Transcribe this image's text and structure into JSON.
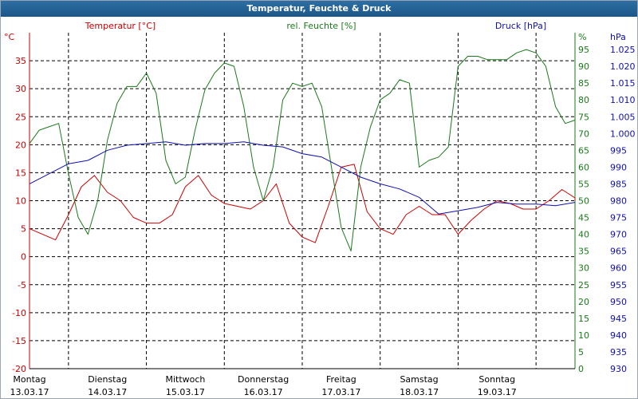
{
  "window": {
    "title": "Temperatur, Feuchte & Druck"
  },
  "colors": {
    "temp": "#cc0000",
    "humidity": "#1a7a1a",
    "pressure": "#1010b0",
    "grid": "#000000",
    "background": "#ffffff"
  },
  "chart_data": {
    "type": "line",
    "title": "Temperatur, Feuchte & Druck",
    "grid": true,
    "x": {
      "start": "2017-03-13T00:00",
      "end": "2017-03-20T00:00",
      "tick_days": [
        "Montag",
        "Dienstag",
        "Mittwoch",
        "Donnerstag",
        "Freitag",
        "Samstag",
        "Sonntag"
      ],
      "tick_dates": [
        "13.03.17",
        "14.03.17",
        "15.03.17",
        "16.03.17",
        "17.03.17",
        "18.03.17",
        "19.03.17"
      ]
    },
    "axes": {
      "temperature": {
        "label": "Temperatur [°C]",
        "unit": "°C",
        "min": -20,
        "max": 40,
        "ticks": [
          -20,
          -15,
          -10,
          -5,
          0,
          5,
          10,
          15,
          20,
          25,
          30,
          35
        ]
      },
      "humidity": {
        "label": "rel. Feuchte [%]",
        "unit": "%",
        "min": 0,
        "max": 100,
        "ticks": [
          0,
          5,
          10,
          15,
          20,
          25,
          30,
          35,
          40,
          45,
          50,
          55,
          60,
          65,
          70,
          75,
          80,
          85,
          90,
          95
        ]
      },
      "pressure": {
        "label": "Druck [hPa]",
        "unit": "hPa",
        "min": 930,
        "max": 1030,
        "ticks": [
          "930",
          "935",
          "940",
          "945",
          "950",
          "955",
          "960",
          "965",
          "970",
          "975",
          "980",
          "985",
          "990",
          "995",
          "1.000",
          "1.005",
          "1.010",
          "1.015",
          "1.020",
          "1.025"
        ]
      }
    },
    "series": [
      {
        "name": "Temperatur [°C]",
        "axis": "temperature",
        "points": [
          [
            "2017-03-13T00:00",
            5.0
          ],
          [
            "2017-03-13T04:00",
            4.0
          ],
          [
            "2017-03-13T08:00",
            3.0
          ],
          [
            "2017-03-13T12:00",
            7.5
          ],
          [
            "2017-03-13T16:00",
            12.5
          ],
          [
            "2017-03-13T20:00",
            14.5
          ],
          [
            "2017-03-14T00:00",
            11.5
          ],
          [
            "2017-03-14T04:00",
            10.0
          ],
          [
            "2017-03-14T08:00",
            7.0
          ],
          [
            "2017-03-14T12:00",
            6.0
          ],
          [
            "2017-03-14T16:00",
            6.0
          ],
          [
            "2017-03-14T20:00",
            7.5
          ],
          [
            "2017-03-15T00:00",
            12.5
          ],
          [
            "2017-03-15T04:00",
            14.5
          ],
          [
            "2017-03-15T08:00",
            11.0
          ],
          [
            "2017-03-15T12:00",
            9.5
          ],
          [
            "2017-03-15T16:00",
            9.0
          ],
          [
            "2017-03-15T20:00",
            8.5
          ],
          [
            "2017-03-16T00:00",
            10.0
          ],
          [
            "2017-03-16T04:00",
            13.0
          ],
          [
            "2017-03-16T08:00",
            6.0
          ],
          [
            "2017-03-16T12:00",
            3.5
          ],
          [
            "2017-03-16T16:00",
            2.5
          ],
          [
            "2017-03-16T20:00",
            9.0
          ],
          [
            "2017-03-17T00:00",
            16.0
          ],
          [
            "2017-03-17T04:00",
            16.5
          ],
          [
            "2017-03-17T08:00",
            8.0
          ],
          [
            "2017-03-17T12:00",
            5.0
          ],
          [
            "2017-03-17T16:00",
            4.0
          ],
          [
            "2017-03-17T20:00",
            7.5
          ],
          [
            "2017-03-18T00:00",
            9.0
          ],
          [
            "2017-03-18T04:00",
            7.5
          ],
          [
            "2017-03-18T08:00",
            7.5
          ],
          [
            "2017-03-18T12:00",
            4.0
          ],
          [
            "2017-03-18T16:00",
            6.5
          ],
          [
            "2017-03-18T20:00",
            8.5
          ],
          [
            "2017-03-19T00:00",
            10.0
          ],
          [
            "2017-03-19T04:00",
            9.5
          ],
          [
            "2017-03-19T08:00",
            8.5
          ],
          [
            "2017-03-19T12:00",
            8.5
          ],
          [
            "2017-03-19T16:00",
            10.0
          ],
          [
            "2017-03-19T20:00",
            12.0
          ],
          [
            "2017-03-20T00:00",
            10.5
          ],
          [
            "2017-03-20T04:00",
            10.0
          ]
        ]
      },
      {
        "name": "rel. Feuchte [%]",
        "axis": "humidity",
        "points": [
          [
            "2017-03-13T00:00",
            67
          ],
          [
            "2017-03-13T03:00",
            71
          ],
          [
            "2017-03-13T06:00",
            72
          ],
          [
            "2017-03-13T09:00",
            73
          ],
          [
            "2017-03-13T12:00",
            58
          ],
          [
            "2017-03-13T15:00",
            45
          ],
          [
            "2017-03-13T18:00",
            40
          ],
          [
            "2017-03-13T21:00",
            50
          ],
          [
            "2017-03-14T00:00",
            68
          ],
          [
            "2017-03-14T03:00",
            79
          ],
          [
            "2017-03-14T06:00",
            84
          ],
          [
            "2017-03-14T09:00",
            84
          ],
          [
            "2017-03-14T12:00",
            88
          ],
          [
            "2017-03-14T15:00",
            82
          ],
          [
            "2017-03-14T18:00",
            62
          ],
          [
            "2017-03-14T21:00",
            55
          ],
          [
            "2017-03-15T00:00",
            57
          ],
          [
            "2017-03-15T03:00",
            71
          ],
          [
            "2017-03-15T06:00",
            83
          ],
          [
            "2017-03-15T09:00",
            88
          ],
          [
            "2017-03-15T12:00",
            91
          ],
          [
            "2017-03-15T15:00",
            90
          ],
          [
            "2017-03-15T18:00",
            78
          ],
          [
            "2017-03-15T21:00",
            60
          ],
          [
            "2017-03-16T00:00",
            50
          ],
          [
            "2017-03-16T03:00",
            60
          ],
          [
            "2017-03-16T06:00",
            80
          ],
          [
            "2017-03-16T09:00",
            85
          ],
          [
            "2017-03-16T12:00",
            84
          ],
          [
            "2017-03-16T15:00",
            85
          ],
          [
            "2017-03-16T18:00",
            78
          ],
          [
            "2017-03-16T21:00",
            60
          ],
          [
            "2017-03-17T00:00",
            42
          ],
          [
            "2017-03-17T03:00",
            35
          ],
          [
            "2017-03-17T06:00",
            60
          ],
          [
            "2017-03-17T09:00",
            72
          ],
          [
            "2017-03-17T12:00",
            80
          ],
          [
            "2017-03-17T15:00",
            82
          ],
          [
            "2017-03-17T18:00",
            86
          ],
          [
            "2017-03-17T21:00",
            85
          ],
          [
            "2017-03-18T00:00",
            60
          ],
          [
            "2017-03-18T03:00",
            62
          ],
          [
            "2017-03-18T06:00",
            63
          ],
          [
            "2017-03-18T09:00",
            66
          ],
          [
            "2017-03-18T12:00",
            90
          ],
          [
            "2017-03-18T15:00",
            93
          ],
          [
            "2017-03-18T18:00",
            93
          ],
          [
            "2017-03-18T21:00",
            92
          ],
          [
            "2017-03-19T00:00",
            92
          ],
          [
            "2017-03-19T03:00",
            92
          ],
          [
            "2017-03-19T06:00",
            94
          ],
          [
            "2017-03-19T09:00",
            95
          ],
          [
            "2017-03-19T12:00",
            94
          ],
          [
            "2017-03-19T15:00",
            90
          ],
          [
            "2017-03-19T18:00",
            78
          ],
          [
            "2017-03-19T21:00",
            73
          ],
          [
            "2017-03-20T00:00",
            74
          ],
          [
            "2017-03-20T02:00",
            83
          ]
        ]
      },
      {
        "name": "Druck [hPa]",
        "axis": "pressure",
        "points": [
          [
            "2017-03-13T00:00",
            985
          ],
          [
            "2017-03-13T06:00",
            988
          ],
          [
            "2017-03-13T12:00",
            991
          ],
          [
            "2017-03-13T18:00",
            992
          ],
          [
            "2017-03-14T00:00",
            995
          ],
          [
            "2017-03-14T06:00",
            996.5
          ],
          [
            "2017-03-14T12:00",
            997
          ],
          [
            "2017-03-14T18:00",
            997.5
          ],
          [
            "2017-03-15T00:00",
            996.5
          ],
          [
            "2017-03-15T06:00",
            997
          ],
          [
            "2017-03-15T12:00",
            997
          ],
          [
            "2017-03-15T18:00",
            997.5
          ],
          [
            "2017-03-16T00:00",
            996.5
          ],
          [
            "2017-03-16T06:00",
            996
          ],
          [
            "2017-03-16T12:00",
            994
          ],
          [
            "2017-03-16T18:00",
            993
          ],
          [
            "2017-03-17T00:00",
            990
          ],
          [
            "2017-03-17T06:00",
            987
          ],
          [
            "2017-03-17T12:00",
            985
          ],
          [
            "2017-03-17T18:00",
            983.5
          ],
          [
            "2017-03-18T00:00",
            981
          ],
          [
            "2017-03-18T06:00",
            976
          ],
          [
            "2017-03-18T12:00",
            977
          ],
          [
            "2017-03-18T18:00",
            978
          ],
          [
            "2017-03-19T00:00",
            979.5
          ],
          [
            "2017-03-19T06:00",
            979
          ],
          [
            "2017-03-19T12:00",
            979
          ],
          [
            "2017-03-19T18:00",
            978.5
          ],
          [
            "2017-03-20T00:00",
            979.5
          ],
          [
            "2017-03-20T04:00",
            979.5
          ]
        ]
      }
    ]
  }
}
